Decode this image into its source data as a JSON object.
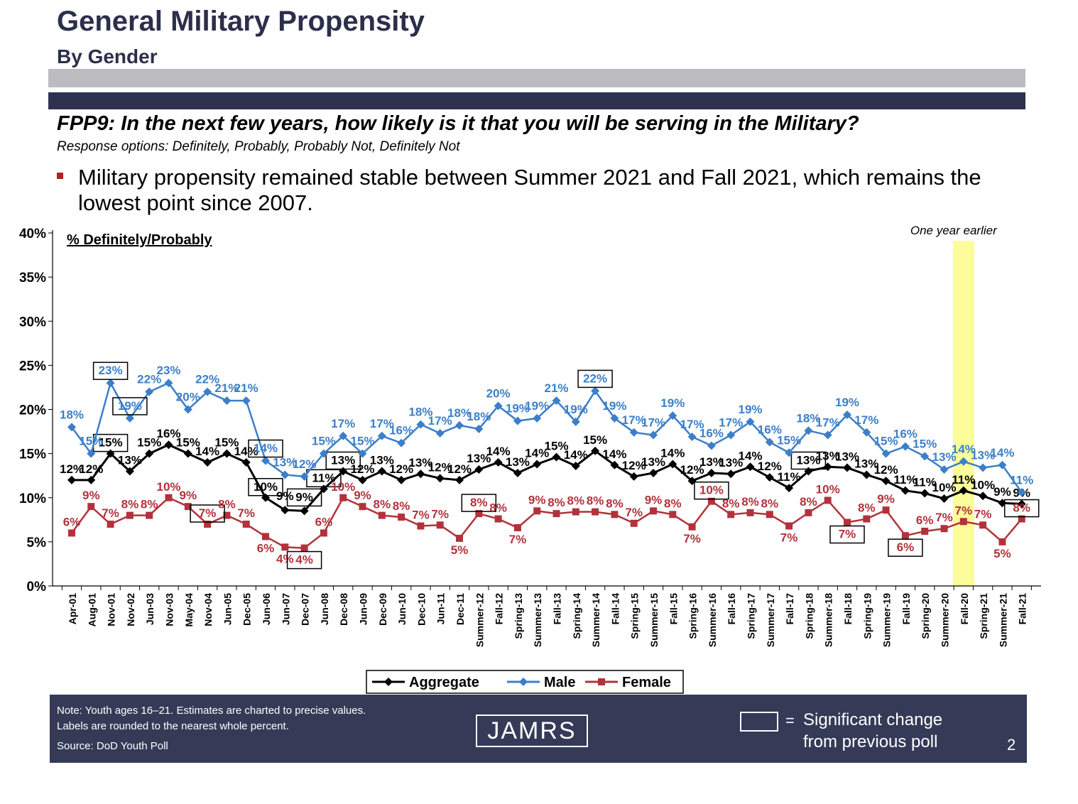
{
  "header": {
    "title": "General Military Propensity",
    "subtitle": "By Gender",
    "question": "FPP9:  In the next few years, how likely is it that you will be serving in the Military?",
    "response_options": "Response options:  Definitely, Probably, Probably Not, Definitely Not",
    "bullet": "Military propensity remained stable between Summer 2021 and Fall 2021, which remains the lowest point since 2007."
  },
  "footer": {
    "note_line1": "Note:  Youth ages 16–21.  Estimates are charted to precise values.",
    "note_line2": "Labels are rounded to the nearest whole percent.",
    "source": "Source:  DoD Youth Poll",
    "logo_text": "JAMRS",
    "sig_equals": "=",
    "sig_line1": "Significant change",
    "sig_line2": "from previous poll",
    "page_number": "2"
  },
  "chart_data": {
    "type": "line",
    "inner_label": "% Definitely/Probably",
    "highlight_label": "One year earlier",
    "highlight_category": "Fall-20",
    "ylim": [
      0,
      40
    ],
    "yticks": [
      "0%",
      "5%",
      "10%",
      "15%",
      "20%",
      "25%",
      "30%",
      "35%",
      "40%"
    ],
    "grid": false,
    "legend_position": "bottom",
    "categories": [
      "Apr-01",
      "Aug-01",
      "Nov-01",
      "Nov-02",
      "Jun-03",
      "Nov-03",
      "May-04",
      "Nov-04",
      "Jun-05",
      "Dec-05",
      "Jun-06",
      "Jun-07",
      "Dec-07",
      "Jun-08",
      "Dec-08",
      "Jun-09",
      "Dec-09",
      "Jun-10",
      "Dec-10",
      "Jun-11",
      "Dec-11",
      "Summer-12",
      "Fall-12",
      "Spring-13",
      "Summer-13",
      "Fall-13",
      "Spring-14",
      "Summer-14",
      "Fall-14",
      "Spring-15",
      "Summer-15",
      "Fall-15",
      "Spring-16",
      "Summer-16",
      "Fall-16",
      "Spring-17",
      "Summer-17",
      "Fall-17",
      "Spring-18",
      "Summer-18",
      "Fall-18",
      "Spring-19",
      "Summer-19",
      "Fall-19",
      "Spring-20",
      "Summer-20",
      "Fall-20",
      "Spring-21",
      "Summer-21",
      "Fall-21"
    ],
    "series": [
      {
        "name": "Aggregate",
        "color": "#000000",
        "marker": "diamond",
        "values": [
          12,
          12,
          15,
          13,
          15,
          16,
          15,
          14,
          15,
          14,
          10,
          8.6,
          8.5,
          11,
          13,
          12,
          13,
          12,
          12.7,
          12.2,
          12,
          13.2,
          14,
          12.8,
          13.8,
          14.6,
          13.6,
          15.3,
          13.7,
          12.4,
          12.8,
          13.8,
          11.9,
          12.8,
          12.7,
          13.5,
          12.3,
          11.1,
          13,
          13.5,
          13.4,
          12.6,
          11.9,
          10.8,
          10.5,
          9.9,
          10.8,
          10.2,
          9.4,
          9.3
        ],
        "labels": [
          "12%",
          "12%",
          "15%",
          "13%",
          "15%",
          "16%",
          "15%",
          "14%",
          "15%",
          "14%",
          "10%",
          "9%",
          "9%",
          "11%",
          "13%",
          "12%",
          "13%",
          "12%",
          "13%",
          "12%",
          "12%",
          "13%",
          "14%",
          "13%",
          "14%",
          "15%",
          "14%",
          "15%",
          "14%",
          "12%",
          "13%",
          "14%",
          "12%",
          "13%",
          "13%",
          "14%",
          "12%",
          "11%",
          "13%",
          "13%",
          "13%",
          "13%",
          "12%",
          "11%",
          "11%",
          "10%",
          "11%",
          "10%",
          "9%",
          "9%"
        ],
        "boxed": [
          2,
          10,
          12,
          13,
          14,
          38
        ]
      },
      {
        "name": "Male",
        "color": "#3c7fc8",
        "marker": "diamond",
        "values": [
          18,
          15,
          23,
          19,
          22,
          23,
          20,
          22,
          21,
          21,
          14.2,
          12.6,
          12.4,
          15,
          17,
          15,
          17,
          16.2,
          18.3,
          17.3,
          18.2,
          17.8,
          20.4,
          18.7,
          19,
          21,
          18.6,
          22.1,
          19,
          17.4,
          17.1,
          19.3,
          16.9,
          15.9,
          17.1,
          18.6,
          16.3,
          15.1,
          17.6,
          17.1,
          19.4,
          17.4,
          15,
          15.8,
          14.7,
          13.2,
          14.1,
          13.4,
          13.7,
          10.6
        ],
        "labels": [
          "18%",
          "15%",
          "23%",
          "19%",
          "22%",
          "23%",
          "20%",
          "22%",
          "21%",
          "21%",
          "14%",
          "13%",
          "12%",
          "15%",
          "17%",
          "15%",
          "17%",
          "16%",
          "18%",
          "17%",
          "18%",
          "18%",
          "20%",
          "19%",
          "19%",
          "21%",
          "19%",
          "22%",
          "19%",
          "17%",
          "17%",
          "19%",
          "17%",
          "16%",
          "17%",
          "19%",
          "16%",
          "15%",
          "18%",
          "17%",
          "19%",
          "17%",
          "15%",
          "16%",
          "15%",
          "13%",
          "14%",
          "13%",
          "14%",
          "11%"
        ],
        "boxed": [
          2,
          3,
          10,
          27
        ]
      },
      {
        "name": "Female",
        "color": "#b2323c",
        "marker": "square",
        "values": [
          6,
          9,
          7,
          8,
          8,
          10,
          9,
          7,
          8,
          7,
          5.6,
          4.4,
          4.3,
          6,
          10,
          9,
          8,
          7.8,
          6.8,
          6.9,
          5.4,
          8.2,
          7.6,
          6.6,
          8.5,
          8.2,
          8.4,
          8.4,
          8.1,
          7.1,
          8.5,
          8.1,
          6.7,
          9.6,
          8.1,
          8.3,
          8.1,
          6.8,
          8.3,
          9.7,
          7.2,
          7.6,
          8.6,
          5.7,
          6.2,
          6.5,
          7.3,
          6.9,
          5,
          7.6
        ],
        "labels": [
          "6%",
          "9%",
          "7%",
          "8%",
          "8%",
          "10%",
          "9%",
          "7%",
          "8%",
          "7%",
          "6%",
          "4%",
          "4%",
          "6%",
          "10%",
          "9%",
          "8%",
          "8%",
          "7%",
          "7%",
          "5%",
          "8%",
          "8%",
          "7%",
          "9%",
          "8%",
          "8%",
          "8%",
          "8%",
          "7%",
          "9%",
          "8%",
          "7%",
          "10%",
          "8%",
          "8%",
          "8%",
          "7%",
          "8%",
          "10%",
          "7%",
          "8%",
          "9%",
          "6%",
          "6%",
          "7%",
          "7%",
          "7%",
          "5%",
          "8%"
        ],
        "boxed": [
          7,
          12,
          21,
          33,
          40,
          43,
          49
        ]
      }
    ]
  }
}
